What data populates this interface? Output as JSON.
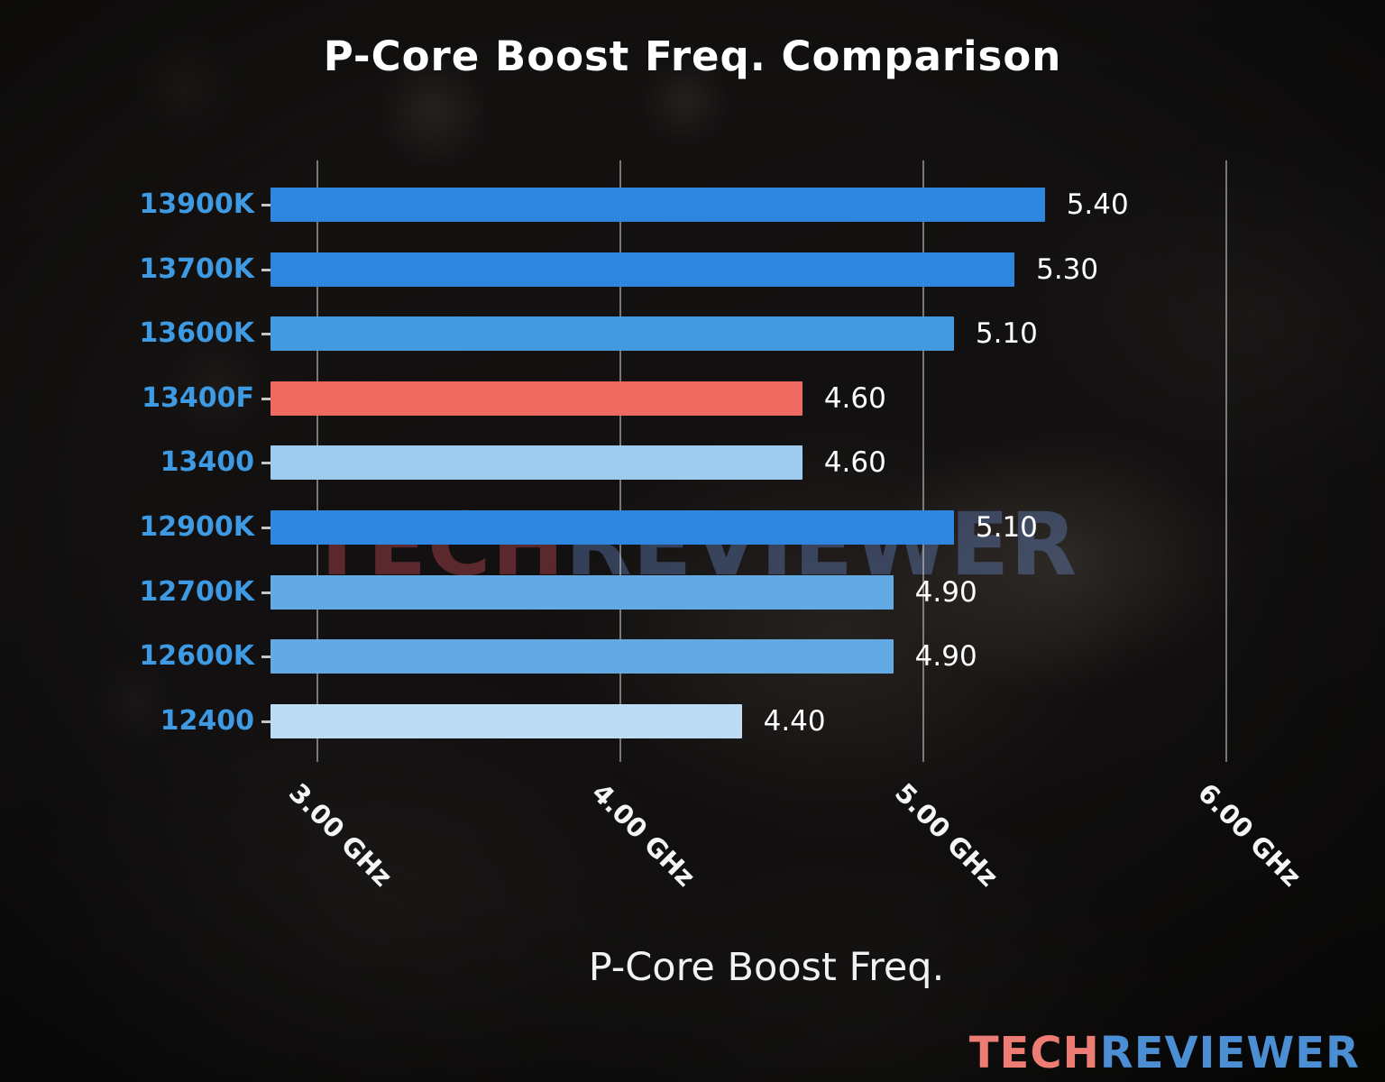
{
  "chart_data": {
    "type": "bar",
    "orientation": "horizontal",
    "title": "P-Core Boost Freq. Comparison",
    "xlabel": "P-Core Boost Freq.",
    "ylabel": "",
    "unit": "GHz",
    "categories": [
      "13900K",
      "13700K",
      "13600K",
      "13400F",
      "13400",
      "12900K",
      "12700K",
      "12600K",
      "12400"
    ],
    "values": [
      5.4,
      5.3,
      5.1,
      4.6,
      4.6,
      5.1,
      4.9,
      4.9,
      4.4
    ],
    "value_labels": [
      "5.40",
      "5.30",
      "5.10",
      "4.60",
      "4.60",
      "5.10",
      "4.90",
      "4.90",
      "4.40"
    ],
    "bar_colors": [
      "#2e86de",
      "#2e86de",
      "#449ade",
      "#ee6a61",
      "#9fccee",
      "#2e86de",
      "#63a9e3",
      "#63a9e3",
      "#bddcf4"
    ],
    "highlighted_category": "13400F",
    "x_ticks": [
      {
        "value": 3.0,
        "label": "3.00 GHz"
      },
      {
        "value": 4.0,
        "label": "4.00 GHz"
      },
      {
        "value": 5.0,
        "label": "5.00 GHz"
      },
      {
        "value": 6.0,
        "label": "6.00 GHz"
      }
    ],
    "xlim": [
      2.845,
      6.35
    ],
    "grid": true,
    "legend": false,
    "category_label_color": "#3d9ae3",
    "value_label_color": "#ffffff",
    "gridline_color": "#cdcdcd"
  },
  "watermark": {
    "part1": "TECH",
    "part2": "REVIEWER"
  },
  "logo": {
    "part1": "TECH",
    "part2": "REVIEWER",
    "color1": "#ed7d74",
    "color2": "#4b8ed3"
  }
}
